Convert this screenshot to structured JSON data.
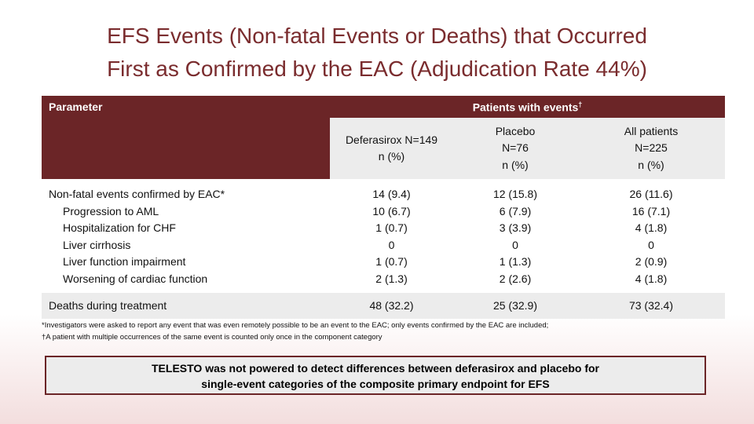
{
  "header": {
    "title": [
      "EFS Events (Non-fatal Events or Deaths) that Occurred",
      "First as Confirmed by the EAC (Adjudication Rate 44%)"
    ]
  },
  "table": {
    "parameter_header": "Parameter",
    "group_header": "Patients with events",
    "group_header_mark": "†",
    "columns": [
      [
        "Deferasirox N=149",
        "n (%)"
      ],
      [
        "Placebo",
        "N=76",
        "n (%)"
      ],
      [
        "All patients",
        "N=225",
        "n (%)"
      ]
    ],
    "rows": [
      [
        "Non-fatal events confirmed by EAC*",
        "14 (9.4)",
        "12 (15.8)",
        "26 (11.6)"
      ],
      [
        "Progression to AML",
        "10 (6.7)",
        "6 (7.9)",
        "16 (7.1)"
      ],
      [
        "Hospitalization for CHF",
        "1 (0.7)",
        "3 (3.9)",
        "4 (1.8)"
      ],
      [
        "Liver cirrhosis",
        "0",
        "0",
        "0"
      ],
      [
        "Liver function impairment",
        "1 (0.7)",
        "1 (1.3)",
        "2 (0.9)"
      ],
      [
        "Worsening of cardiac function",
        "2 (1.3)",
        "2 (2.6)",
        "4 (1.8)"
      ],
      [
        "Deaths during treatment",
        "48 (32.2)",
        "25 (32.9)",
        "73 (32.4)"
      ]
    ]
  },
  "footnotes": [
    "*Investigators were asked to report any event that was even remotely possible to be an event to the EAC; only events confirmed by the EAC are included;",
    "†A patient with multiple occurrences of the same event is counted only once in the component category"
  ],
  "callout": [
    "TELESTO was not powered to detect differences between deferasirox and placebo for",
    "single-event categories of the composite primary endpoint for EFS"
  ]
}
